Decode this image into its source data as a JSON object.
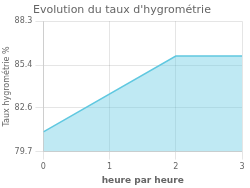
{
  "chart_data": {
    "type": "area",
    "title": "Evolution du taux d'hygrométrie",
    "xlabel": "heure par heure",
    "ylabel": "Taux hygrométrie %",
    "x": [
      0,
      2,
      3
    ],
    "values": [
      81.0,
      86.0,
      86.0
    ],
    "color": "#60c8e0",
    "xlim": [
      0,
      3
    ],
    "xticks": [
      0,
      1,
      2,
      3
    ],
    "ylim": [
      79.7,
      88.3
    ],
    "yticks": [
      79.7,
      82.6,
      85.4,
      88.3
    ],
    "grid": true
  }
}
